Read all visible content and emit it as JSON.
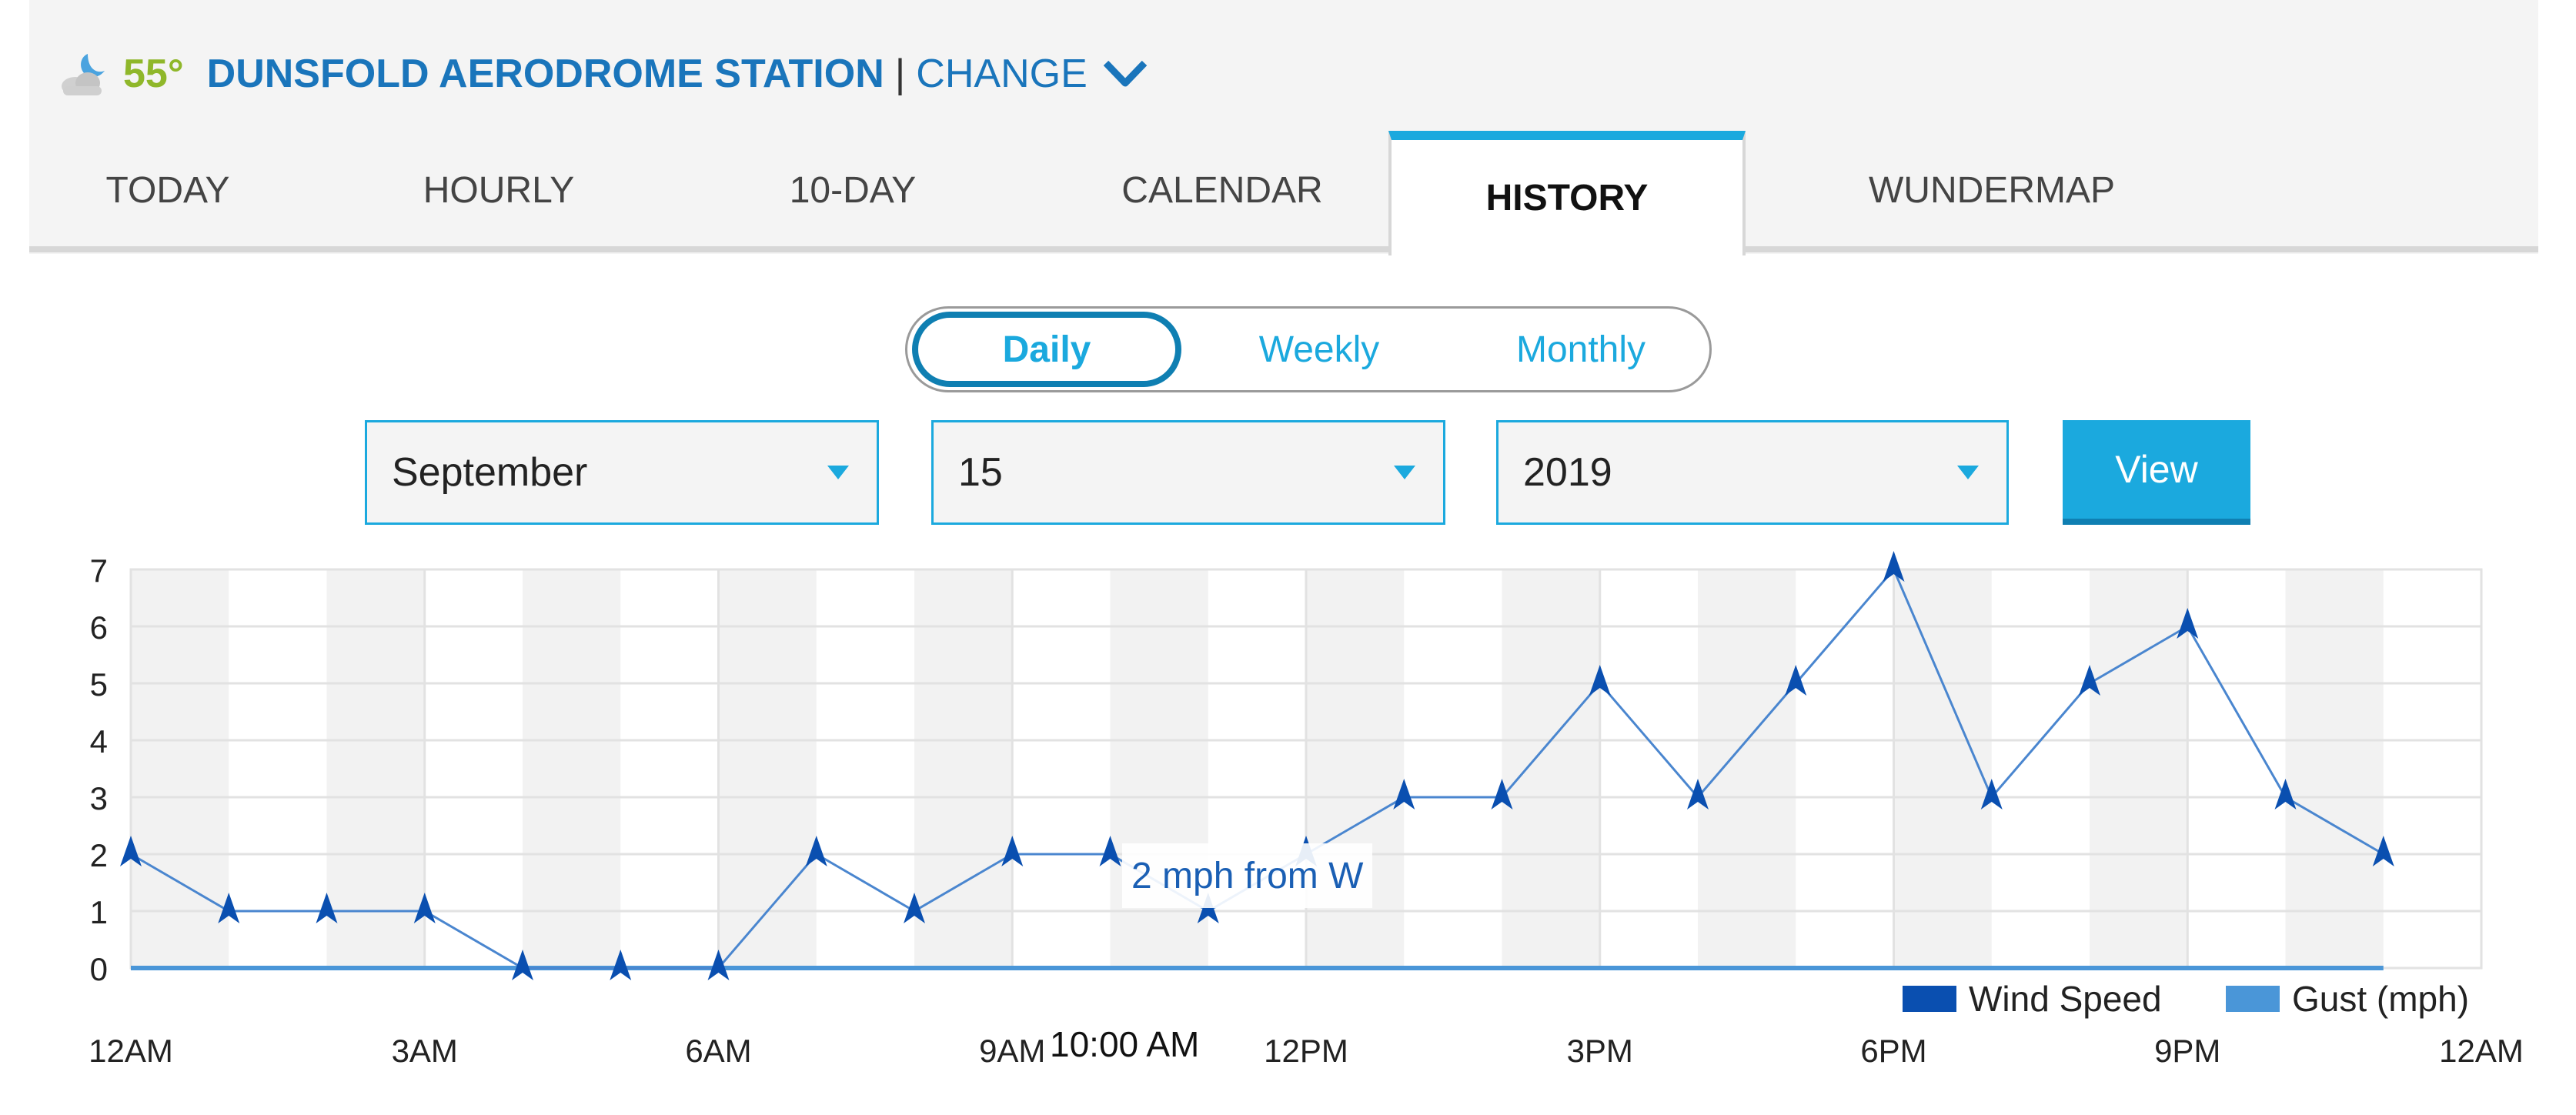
{
  "header": {
    "temperature": "55°",
    "station_name": "DUNSFOLD AERODROME STATION",
    "separator": "|",
    "change_label": "CHANGE",
    "weather_icon": "partly-cloudy-night-icon",
    "colors": {
      "temp": "#8fb72a",
      "name": "#1a75bb"
    }
  },
  "tabs": [
    {
      "label": "TODAY",
      "active": false
    },
    {
      "label": "HOURLY",
      "active": false
    },
    {
      "label": "10-DAY",
      "active": false
    },
    {
      "label": "CALENDAR",
      "active": false
    },
    {
      "label": "HISTORY",
      "active": true
    },
    {
      "label": "WUNDERMAP",
      "active": false
    }
  ],
  "period": {
    "options": [
      "Daily",
      "Weekly",
      "Monthly"
    ],
    "selected": "Daily"
  },
  "date_selectors": {
    "month": "September",
    "day": "15",
    "year": "2019"
  },
  "view_label": "View",
  "accent_color": "#1ba9de",
  "chart_data": {
    "type": "line",
    "y_ticks": [
      "0",
      "1",
      "2",
      "3",
      "4",
      "5",
      "6",
      "7"
    ],
    "ylim": [
      0,
      7
    ],
    "x_ticks": [
      "12AM",
      "3AM",
      "6AM",
      "9AM",
      "12PM",
      "3PM",
      "6PM",
      "9PM",
      "12AM"
    ],
    "xlim_hours": [
      0,
      24
    ],
    "series": [
      {
        "name": "Wind Speed",
        "color": "#0a4fb0",
        "hours": [
          0,
          1,
          2,
          3,
          4,
          5,
          6,
          7,
          8,
          9,
          10,
          11,
          12,
          13,
          14,
          15,
          16,
          17,
          18,
          19,
          20,
          21,
          22,
          23
        ],
        "values": [
          2,
          1,
          1,
          1,
          0,
          0,
          0,
          2,
          1,
          2,
          2,
          1,
          2,
          3,
          3,
          5,
          3,
          5,
          7,
          3,
          5,
          6,
          3,
          2
        ],
        "marker": "wind-direction-arrow"
      },
      {
        "name": "Gust (mph)",
        "color": "#4a96d8",
        "hours": [
          0,
          23
        ],
        "values": [
          0,
          0
        ]
      }
    ],
    "grid": true,
    "legend_position": "bottom-right",
    "tooltip": "2 mph from W",
    "hover_x_label": "10:00 AM"
  }
}
